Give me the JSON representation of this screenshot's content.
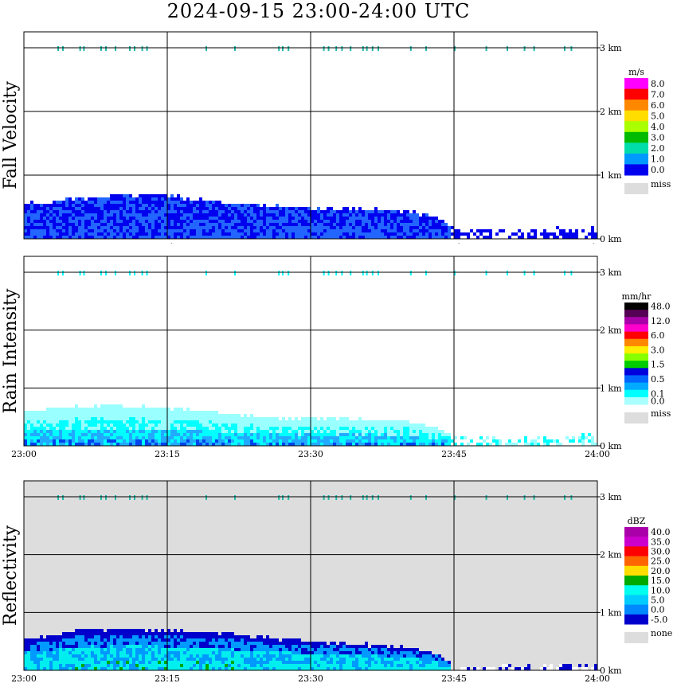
{
  "title": "2024-09-15  23:00-24:00 UTC",
  "time_ticks": [
    "23:00",
    "23:15",
    "23:30",
    "23:45",
    "24:00"
  ],
  "height_ticks": [
    "0 km",
    "1 km",
    "2 km",
    "3 km"
  ],
  "panels": [
    {
      "id": "fall-velocity",
      "ylabel": "Fall Velocity",
      "unit": "m/s",
      "background": "#ffffff",
      "colorbar": [
        {
          "label": "8.0",
          "color": "#ff00ff"
        },
        {
          "label": "7.0",
          "color": "#ff0000"
        },
        {
          "label": "6.0",
          "color": "#ff8800"
        },
        {
          "label": "5.0",
          "color": "#ffdd00"
        },
        {
          "label": "4.0",
          "color": "#aaff00"
        },
        {
          "label": "3.0",
          "color": "#00bb00"
        },
        {
          "label": "2.0",
          "color": "#00ddaa"
        },
        {
          "label": "1.0",
          "color": "#0099ff"
        },
        {
          "label": "0.0",
          "color": "#0000ee"
        }
      ],
      "miss_label": "miss"
    },
    {
      "id": "rain-intensity",
      "ylabel": "Rain Intensity",
      "unit": "mm/hr",
      "background": "#ffffff",
      "colorbar": [
        {
          "label": "48.0",
          "color": "#000000"
        },
        {
          "label": "",
          "color": "#550055"
        },
        {
          "label": "12.0",
          "color": "#aa00aa"
        },
        {
          "label": "",
          "color": "#ff00cc"
        },
        {
          "label": "6.0",
          "color": "#ff0000"
        },
        {
          "label": "",
          "color": "#ff8800"
        },
        {
          "label": "3.0",
          "color": "#ffee00"
        },
        {
          "label": "",
          "color": "#88ff00"
        },
        {
          "label": "1.5",
          "color": "#00cc00"
        },
        {
          "label": "",
          "color": "#0000dd"
        },
        {
          "label": "0.5",
          "color": "#0066ff"
        },
        {
          "label": "",
          "color": "#00aaff"
        },
        {
          "label": "0.1",
          "color": "#00ffff"
        },
        {
          "label": "0.0",
          "color": "#aaffff"
        }
      ],
      "miss_label": "miss"
    },
    {
      "id": "reflectivity",
      "ylabel": "Reflectivity",
      "unit": "dBZ",
      "background": "#dddddd",
      "colorbar": [
        {
          "label": "40.0",
          "color": "#aa00aa"
        },
        {
          "label": "35.0",
          "color": "#cc00cc"
        },
        {
          "label": "30.0",
          "color": "#ff0000"
        },
        {
          "label": "25.0",
          "color": "#ff6600"
        },
        {
          "label": "20.0",
          "color": "#ffdd00"
        },
        {
          "label": "15.0",
          "color": "#00aa00"
        },
        {
          "label": "10.0",
          "color": "#00ffee"
        },
        {
          "label": "5.0",
          "color": "#00ccff"
        },
        {
          "label": "0.0",
          "color": "#0088ff"
        },
        {
          "label": "-5.0",
          "color": "#0000cc"
        }
      ],
      "miss_label": "none"
    }
  ],
  "chart_data": {
    "type": "heatmap",
    "title": "2024-09-15  23:00-24:00 UTC",
    "x_range": [
      "23:00",
      "24:00"
    ],
    "y_range_km": [
      0,
      3
    ],
    "grid": true,
    "colors": {
      "fv_dark": "#0000ee",
      "fv_light": "#2266ff",
      "ri_light": "#99ffff",
      "ri_mid": "#00ffff",
      "ri_blue": "#22aaff",
      "ri_dark": "#0044ee",
      "rf_navy": "#0000cc",
      "rf_blue": "#0099ff",
      "rf_cyan": "#00eeee",
      "rf_green": "#00aa00",
      "bright_band": "#22bbaa"
    },
    "series": [
      {
        "name": "Fall Velocity",
        "echo_top_km": [
          {
            "t": 0,
            "h": 0.58
          },
          {
            "t": 5,
            "h": 0.65
          },
          {
            "t": 10,
            "h": 0.72
          },
          {
            "t": 15,
            "h": 0.7
          },
          {
            "t": 20,
            "h": 0.62
          },
          {
            "t": 25,
            "h": 0.55
          },
          {
            "t": 30,
            "h": 0.5
          },
          {
            "t": 35,
            "h": 0.48
          },
          {
            "t": 40,
            "h": 0.46
          },
          {
            "t": 43,
            "h": 0.38
          },
          {
            "t": 45,
            "h": 0.16
          },
          {
            "t": 50,
            "h": 0.15
          },
          {
            "t": 55,
            "h": 0.18
          },
          {
            "t": 60,
            "h": 0.2
          }
        ]
      },
      {
        "name": "Rain Intensity",
        "echo_top_km": [
          {
            "t": 0,
            "h": 0.62
          },
          {
            "t": 5,
            "h": 0.7
          },
          {
            "t": 10,
            "h": 0.72
          },
          {
            "t": 15,
            "h": 0.68
          },
          {
            "t": 20,
            "h": 0.6
          },
          {
            "t": 25,
            "h": 0.52
          },
          {
            "t": 30,
            "h": 0.5
          },
          {
            "t": 35,
            "h": 0.48
          },
          {
            "t": 40,
            "h": 0.45
          },
          {
            "t": 43,
            "h": 0.35
          },
          {
            "t": 45,
            "h": 0.18
          },
          {
            "t": 50,
            "h": 0.16
          },
          {
            "t": 55,
            "h": 0.2
          },
          {
            "t": 60,
            "h": 0.22
          }
        ]
      },
      {
        "name": "Reflectivity",
        "echo_top_km": [
          {
            "t": 0,
            "h": 0.55
          },
          {
            "t": 5,
            "h": 0.72
          },
          {
            "t": 10,
            "h": 0.74
          },
          {
            "t": 15,
            "h": 0.72
          },
          {
            "t": 20,
            "h": 0.68
          },
          {
            "t": 25,
            "h": 0.6
          },
          {
            "t": 30,
            "h": 0.52
          },
          {
            "t": 35,
            "h": 0.48
          },
          {
            "t": 40,
            "h": 0.42
          },
          {
            "t": 43,
            "h": 0.3
          },
          {
            "t": 45,
            "h": 0.1
          },
          {
            "t": 50,
            "h": 0.1
          },
          {
            "t": 55,
            "h": 0.12
          },
          {
            "t": 60,
            "h": 0.15
          }
        ]
      }
    ],
    "bright_band_km": 3.0,
    "bright_band_times_min": [
      3.5,
      4,
      5.8,
      6.2,
      8,
      8.5,
      9.5,
      11,
      11.5,
      12.3,
      12.8,
      19,
      22,
      26.6,
      27,
      27.6,
      31.3,
      31.8,
      32.6,
      33.2,
      34.1,
      35.4,
      35.8,
      36.4,
      37,
      40.4,
      42,
      45,
      48.3,
      50.5,
      52.3,
      53.3,
      56.5,
      57.2
    ]
  }
}
